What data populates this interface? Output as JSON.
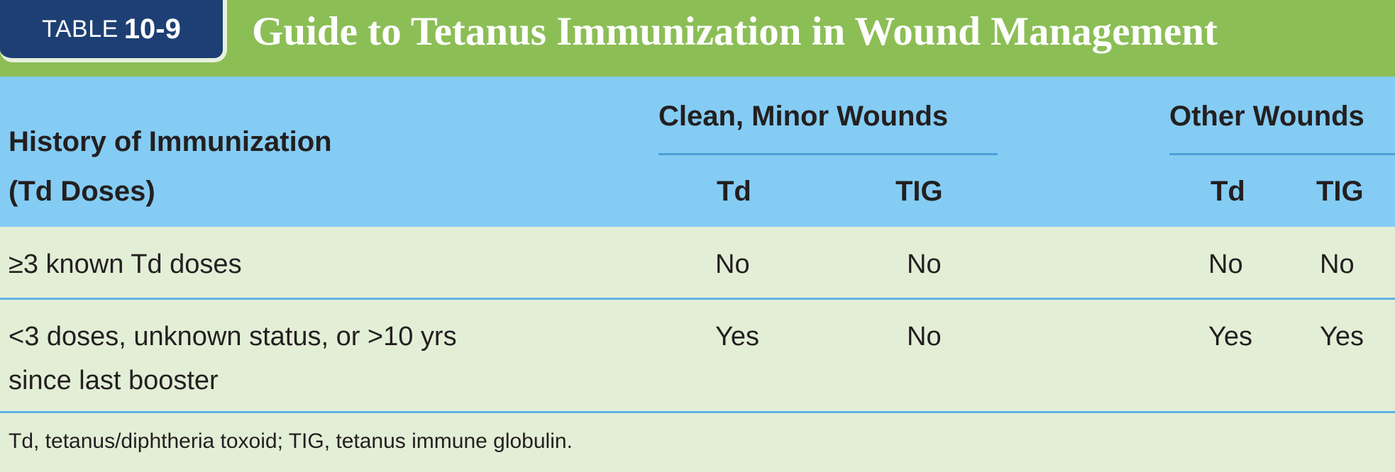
{
  "title": {
    "table_word": "TABLE",
    "table_number": "10-9",
    "text": "Guide to Tetanus Immunization in Wound Management"
  },
  "header": {
    "history_line1": "History of Immunization",
    "history_line2": "(Td Doses)",
    "group_clean": "Clean, Minor Wounds",
    "group_other": "Other Wounds",
    "col_td": "Td",
    "col_tig": "TIG"
  },
  "rows": [
    {
      "label_line1": "≥3 known Td doses",
      "label_line2": "",
      "clean_td": "No",
      "clean_tig": "No",
      "other_td": "No",
      "other_tig": "No"
    },
    {
      "label_line1": "<3 doses, unknown status, or >10 yrs",
      "label_line2": "since last booster",
      "clean_td": "Yes",
      "clean_tig": "No",
      "other_td": "Yes",
      "other_tig": "Yes"
    }
  ],
  "footnote": "Td, tetanus/diphtheria toxoid; TIG, tetanus immune globulin.",
  "colors": {
    "title_bar": "#8cbe56",
    "badge": "#1d3f73",
    "header_band": "#84ccf3",
    "body": "#e3eed6",
    "rule": "#5eb3e6"
  }
}
